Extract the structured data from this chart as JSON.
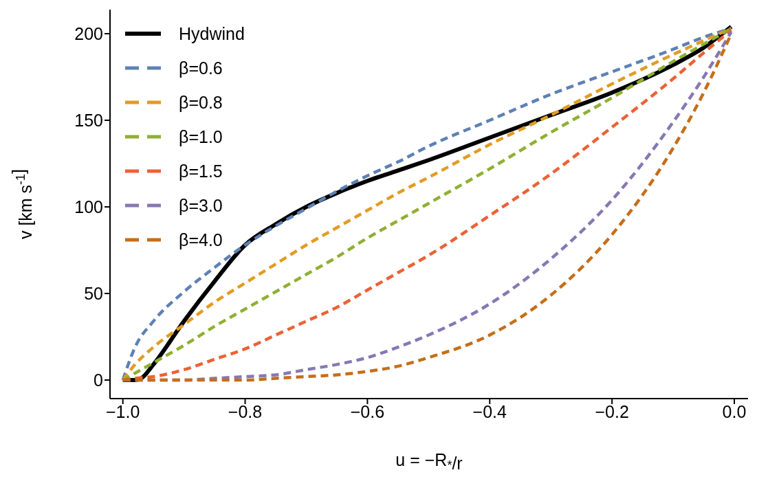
{
  "chart_data": {
    "type": "line",
    "xlabel": "u = −R$_{*}$/r",
    "ylabel": "v [km s$^{-1}$]",
    "xlim": [
      -1.021,
      0.0225
    ],
    "ylim": [
      -10.7,
      213.9
    ],
    "xticks": [
      {
        "value": -1,
        "label": "−1.0"
      },
      {
        "value": -0.8,
        "label": "−0.8"
      },
      {
        "value": -0.6,
        "label": "−0.6"
      },
      {
        "value": -0.4,
        "label": "−0.4"
      },
      {
        "value": -0.2,
        "label": "−0.2"
      },
      {
        "value": 0,
        "label": "0.0"
      }
    ],
    "yticks": [
      0,
      50,
      100,
      150,
      200
    ],
    "grid": false,
    "legend": "top left",
    "marker": "none",
    "series": [
      {
        "name": "Hydwind",
        "color": "#000000",
        "line_style": "solid",
        "x": [
          -1,
          -0.98,
          -0.97,
          -0.95,
          -0.9,
          -0.85,
          -0.8,
          -0.75,
          -0.7,
          -0.65,
          -0.6,
          -0.55,
          -0.5,
          -0.4,
          -0.3,
          -0.2,
          -0.1,
          -0.05,
          -0.016,
          -0.005
        ],
        "values": [
          0,
          0,
          1,
          9,
          34,
          57,
          78,
          90,
          100,
          108,
          115,
          121,
          127,
          140,
          153,
          166,
          182,
          192,
          201,
          204
        ]
      },
      {
        "name": "β=0.6",
        "color": "#5e81b5",
        "line_style": "dashed",
        "x": [
          -1,
          -0.98,
          -0.95,
          -0.9,
          -0.85,
          -0.8,
          -0.75,
          -0.7,
          -0.65,
          -0.6,
          -0.55,
          -0.5,
          -0.4,
          -0.3,
          -0.2,
          -0.1,
          -0.05,
          -0.005
        ],
        "values": [
          0,
          19,
          34,
          51,
          65,
          78,
          89,
          99,
          109,
          118,
          126,
          135,
          150,
          165,
          178,
          191,
          198,
          203
        ]
      },
      {
        "name": "β=0.8",
        "color": "#e19c24",
        "line_style": "dashed",
        "x": [
          -1,
          -0.98,
          -0.95,
          -0.9,
          -0.85,
          -0.8,
          -0.75,
          -0.7,
          -0.65,
          -0.6,
          -0.55,
          -0.5,
          -0.4,
          -0.3,
          -0.2,
          -0.1,
          -0.05,
          -0.005
        ],
        "values": [
          0,
          9,
          19,
          32,
          45,
          56,
          67,
          78,
          88,
          98,
          108,
          117,
          136,
          153,
          171,
          188,
          196,
          203
        ]
      },
      {
        "name": "β=1.0",
        "color": "#8fb032",
        "line_style": "dashed",
        "x": [
          -1,
          -0.98,
          -0.95,
          -0.9,
          -0.85,
          -0.8,
          -0.75,
          -0.7,
          -0.65,
          -0.6,
          -0.55,
          -0.5,
          -0.4,
          -0.3,
          -0.2,
          -0.1,
          -0.05,
          -0.005
        ],
        "values": [
          0,
          4,
          10,
          20,
          31,
          41,
          51,
          61,
          71,
          82,
          92,
          102,
          122,
          143,
          163,
          184,
          194,
          203
        ]
      },
      {
        "name": "β=1.5",
        "color": "#eb6235",
        "line_style": "dashed",
        "x": [
          -1,
          -0.98,
          -0.95,
          -0.9,
          -0.85,
          -0.8,
          -0.75,
          -0.7,
          -0.65,
          -0.6,
          -0.55,
          -0.5,
          -0.4,
          -0.3,
          -0.2,
          -0.1,
          -0.05,
          -0.005
        ],
        "values": [
          0,
          1,
          2,
          6,
          12,
          18,
          26,
          34,
          42,
          52,
          62,
          72,
          95,
          119,
          146,
          174,
          189,
          202
        ]
      },
      {
        "name": "β=3.0",
        "color": "#8778b3",
        "line_style": "dashed",
        "x": [
          -1,
          -0.98,
          -0.95,
          -0.9,
          -0.85,
          -0.8,
          -0.75,
          -0.7,
          -0.65,
          -0.6,
          -0.55,
          -0.5,
          -0.4,
          -0.3,
          -0.2,
          -0.1,
          -0.05,
          -0.005
        ],
        "values": [
          0,
          0,
          0,
          0,
          1,
          2,
          3,
          6,
          9,
          13,
          19,
          26,
          44,
          70,
          104,
          149,
          175,
          201
        ]
      },
      {
        "name": "β=4.0",
        "color": "#c56e1a",
        "line_style": "dashed",
        "x": [
          -1,
          -0.98,
          -0.95,
          -0.9,
          -0.85,
          -0.8,
          -0.75,
          -0.7,
          -0.65,
          -0.6,
          -0.55,
          -0.5,
          -0.4,
          -0.3,
          -0.2,
          -0.1,
          -0.05,
          -0.005
        ],
        "values": [
          0,
          0,
          0,
          0,
          0,
          0,
          1,
          2,
          3,
          5,
          8,
          13,
          26,
          49,
          84,
          134,
          166,
          200
        ]
      }
    ]
  }
}
